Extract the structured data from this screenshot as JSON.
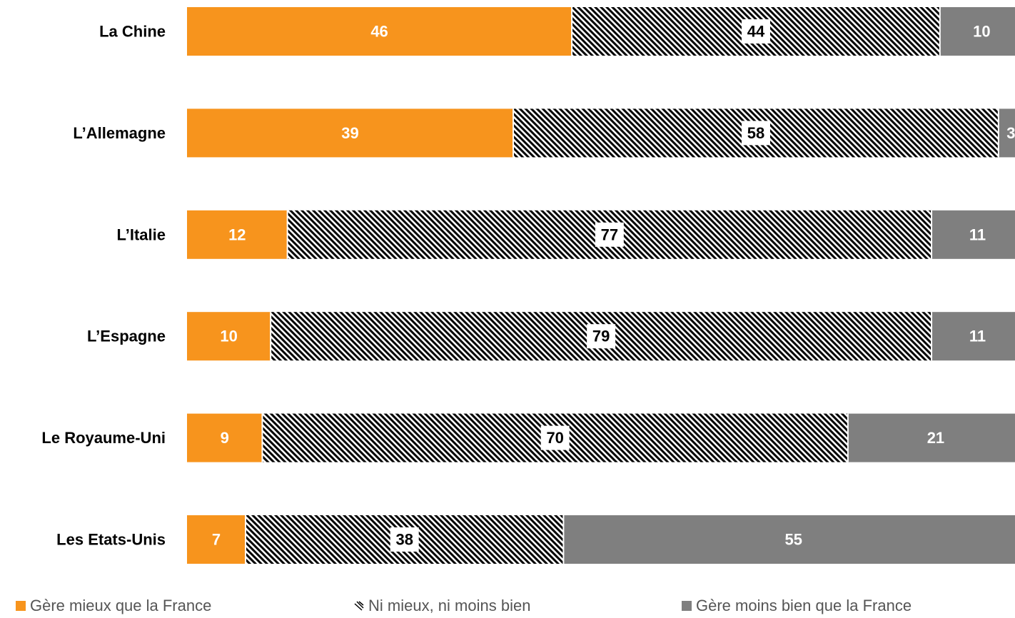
{
  "chart_data": {
    "type": "bar",
    "orientation": "horizontal",
    "stacked": true,
    "categories": [
      "La Chine",
      "L’Allemagne",
      "L’Italie",
      "L’Espagne",
      "Le Royaume-Uni",
      "Les Etats-Unis"
    ],
    "series": [
      {
        "name": "Gère mieux que la France",
        "color": "#F7941D",
        "pattern": "solid",
        "values": [
          46,
          39,
          12,
          10,
          9,
          7
        ]
      },
      {
        "name": "Ni mieux, ni moins bien",
        "color": "#000000",
        "pattern": "diagonal-hatch",
        "values": [
          44,
          58,
          77,
          79,
          70,
          38
        ]
      },
      {
        "name": "Gère moins bien que la France",
        "color": "#7F7F7F",
        "pattern": "solid",
        "values": [
          10,
          3,
          11,
          11,
          21,
          55
        ]
      }
    ],
    "data_labels": true,
    "legend_position": "bottom",
    "grid": false,
    "xlim": [
      0,
      100
    ]
  },
  "legend": {
    "items": [
      {
        "label": "Gère mieux que la France",
        "icon": "orange-square-icon"
      },
      {
        "label": "Ni mieux, ni moins bien",
        "icon": "hatched-square-icon"
      },
      {
        "label": "Gère moins bien que la France",
        "icon": "gray-square-icon"
      }
    ]
  }
}
